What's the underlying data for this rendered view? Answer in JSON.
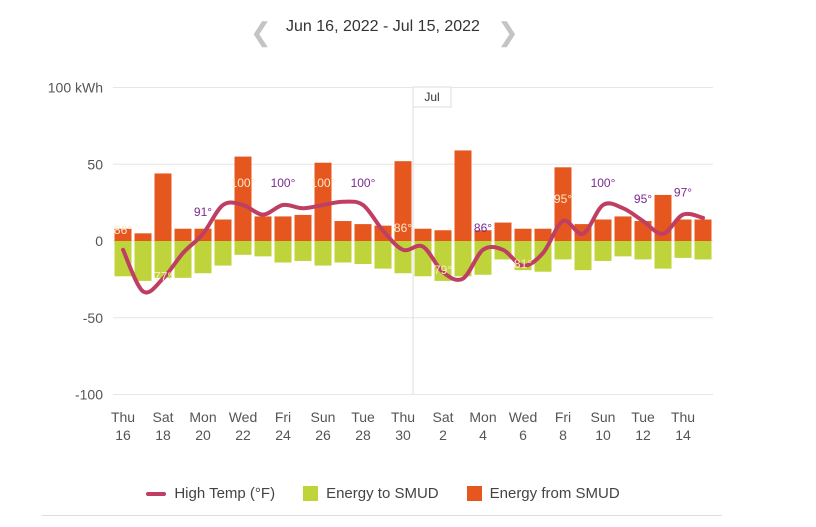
{
  "header": {
    "date_range": "Jun 16, 2022 - Jul 15, 2022",
    "prev_icon": "chevron-left-icon",
    "next_icon": "chevron-right-icon"
  },
  "colors": {
    "from": "#e5571f",
    "to": "#bfd43a",
    "temp": "#bf3f62",
    "label": "#7a2a8f",
    "label_light": "#fde9c9",
    "grid": "#e6e6e6"
  },
  "chart_data": {
    "type": "bar",
    "ylim": [
      -100,
      100
    ],
    "yticks": [
      {
        "v": 100,
        "t": "100 kWh"
      },
      {
        "v": 50,
        "t": "50"
      },
      {
        "v": 0,
        "t": "0"
      },
      {
        "v": -50,
        "t": "-50"
      },
      {
        "v": -100,
        "t": "-100"
      }
    ],
    "days": [
      "Jun 16",
      "Jun 17",
      "Jun 18",
      "Jun 19",
      "Jun 20",
      "Jun 21",
      "Jun 22",
      "Jun 23",
      "Jun 24",
      "Jun 25",
      "Jun 26",
      "Jun 27",
      "Jun 28",
      "Jun 29",
      "Jun 30",
      "Jul 1",
      "Jul 2",
      "Jul 3",
      "Jul 4",
      "Jul 5",
      "Jul 6",
      "Jul 7",
      "Jul 8",
      "Jul 9",
      "Jul 10",
      "Jul 11",
      "Jul 12",
      "Jul 13",
      "Jul 14",
      "Jul 15"
    ],
    "xticks": [
      {
        "d": "Thu",
        "n": "16"
      },
      {
        "d": "Sat",
        "n": "18"
      },
      {
        "d": "Mon",
        "n": "20"
      },
      {
        "d": "Wed",
        "n": "22"
      },
      {
        "d": "Fri",
        "n": "24"
      },
      {
        "d": "Sun",
        "n": "26"
      },
      {
        "d": "Tue",
        "n": "28"
      },
      {
        "d": "Thu",
        "n": "30"
      },
      {
        "d": "Sat",
        "n": "2"
      },
      {
        "d": "Mon",
        "n": "4"
      },
      {
        "d": "Wed",
        "n": "6"
      },
      {
        "d": "Fri",
        "n": "8"
      },
      {
        "d": "Sun",
        "n": "10"
      },
      {
        "d": "Tue",
        "n": "12"
      },
      {
        "d": "Thu",
        "n": "14"
      }
    ],
    "month_marker": "Jul",
    "series": [
      {
        "name": "Energy from SMUD",
        "values": [
          8,
          5,
          44,
          8,
          8,
          14,
          55,
          16,
          16,
          17,
          51,
          13,
          11,
          10,
          52,
          8,
          7,
          59,
          7,
          12,
          8,
          8,
          48,
          11,
          14,
          16,
          13,
          30,
          14,
          14
        ]
      },
      {
        "name": "Energy to SMUD",
        "values": [
          -23,
          -26,
          -24,
          -24,
          -21,
          -16,
          -9,
          -10,
          -14,
          -13,
          -16,
          -14,
          -15,
          -18,
          -21,
          -23,
          -26,
          -23,
          -22,
          -12,
          -19,
          -20,
          -12,
          -19,
          -13,
          -10,
          -12,
          -18,
          -11,
          -12
        ]
      },
      {
        "name": "High Temp (°F)",
        "values": [
          86,
          73,
          77,
          85,
          91,
          100,
          100,
          97,
          100,
          99,
          100,
          101,
          100,
          92,
          86,
          87,
          79,
          77,
          86,
          86,
          81,
          85,
          95,
          91,
          100,
          99,
          95,
          91,
          97,
          96
        ]
      }
    ],
    "temp_labels": [
      "86°",
      "77°",
      "91°",
      "100°",
      "100°",
      "100°",
      "100°",
      "86°",
      "79°",
      "86°",
      "81°",
      "95°",
      "100°",
      "95°",
      "97°"
    ],
    "legend": [
      "High Temp (°F)",
      "Energy to SMUD",
      "Energy from SMUD"
    ]
  }
}
